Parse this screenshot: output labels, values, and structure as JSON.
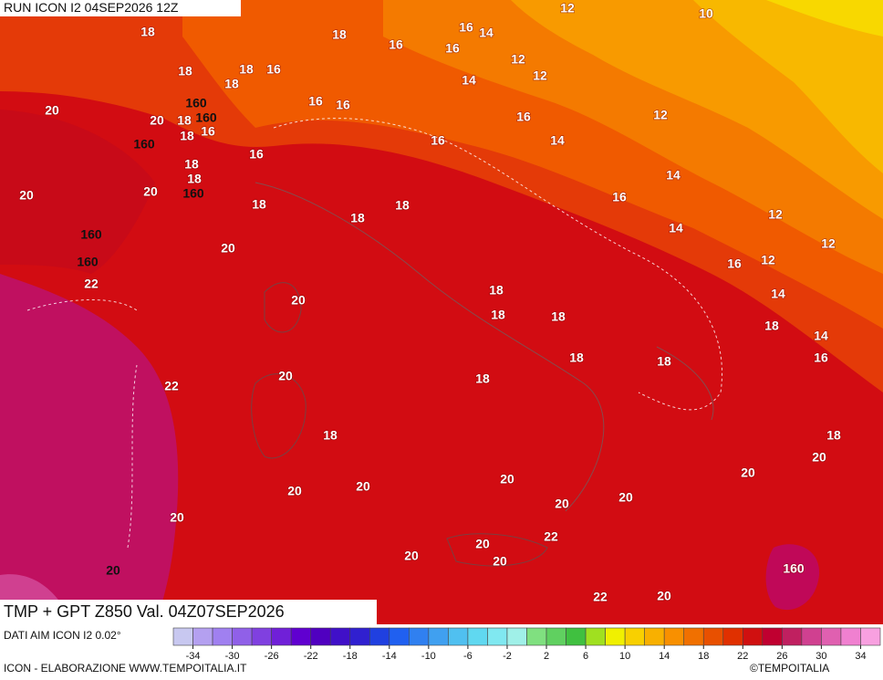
{
  "header": {
    "run": "RUN ICON I2 04SEP2026 12Z"
  },
  "map": {
    "contour_labels": [
      12,
      10,
      18,
      18,
      16,
      14,
      16,
      16,
      12,
      12,
      18,
      16,
      18,
      18,
      14,
      160,
      160,
      20,
      20,
      18,
      16,
      18,
      16,
      16,
      12,
      16,
      160,
      16,
      14,
      18,
      16,
      18,
      14,
      20,
      160,
      20,
      18,
      16,
      18,
      12,
      18,
      14,
      12,
      160,
      20,
      160,
      12,
      16,
      22,
      14,
      18,
      20,
      18,
      18,
      18,
      14,
      18,
      18,
      16,
      20,
      18,
      22,
      18,
      18,
      20,
      20,
      20,
      20,
      20,
      20,
      20,
      20,
      22,
      20,
      20,
      20,
      20,
      160,
      22,
      20,
      20
    ]
  },
  "footer": {
    "title": "TMP + GPT Z850 Val. 04Z07SEP2026",
    "source": "DATI AIM ICON I2 0.02°",
    "credit": "ICON - ELABORAZIONE WWW.TEMPOITALIA.IT",
    "copyright": "©TEMPOITALIA"
  },
  "colorbar": {
    "lim": [
      -36,
      36
    ],
    "ticks": [
      -34,
      -30,
      -26,
      -22,
      -18,
      -14,
      -10,
      -6,
      -2,
      2,
      6,
      10,
      14,
      18,
      22,
      26,
      30,
      34
    ],
    "colors": [
      "#c8c8f0",
      "#b4a0f0",
      "#a080f0",
      "#9060e8",
      "#8040e0",
      "#7020d8",
      "#6000d0",
      "#5000c0",
      "#4010c8",
      "#3020d0",
      "#2040e0",
      "#2060f0",
      "#3080f0",
      "#40a0f0",
      "#50c0f0",
      "#60d8f0",
      "#80e8f0",
      "#a0f0e8",
      "#80e080",
      "#60d060",
      "#40c040",
      "#a0e020",
      "#f0f000",
      "#f8d000",
      "#f8b000",
      "#f89000",
      "#f07000",
      "#e85000",
      "#e03000",
      "#d01010",
      "#c00030",
      "#c02060",
      "#d04090",
      "#e060b0",
      "#f080d0",
      "#f8a0e0"
    ]
  }
}
